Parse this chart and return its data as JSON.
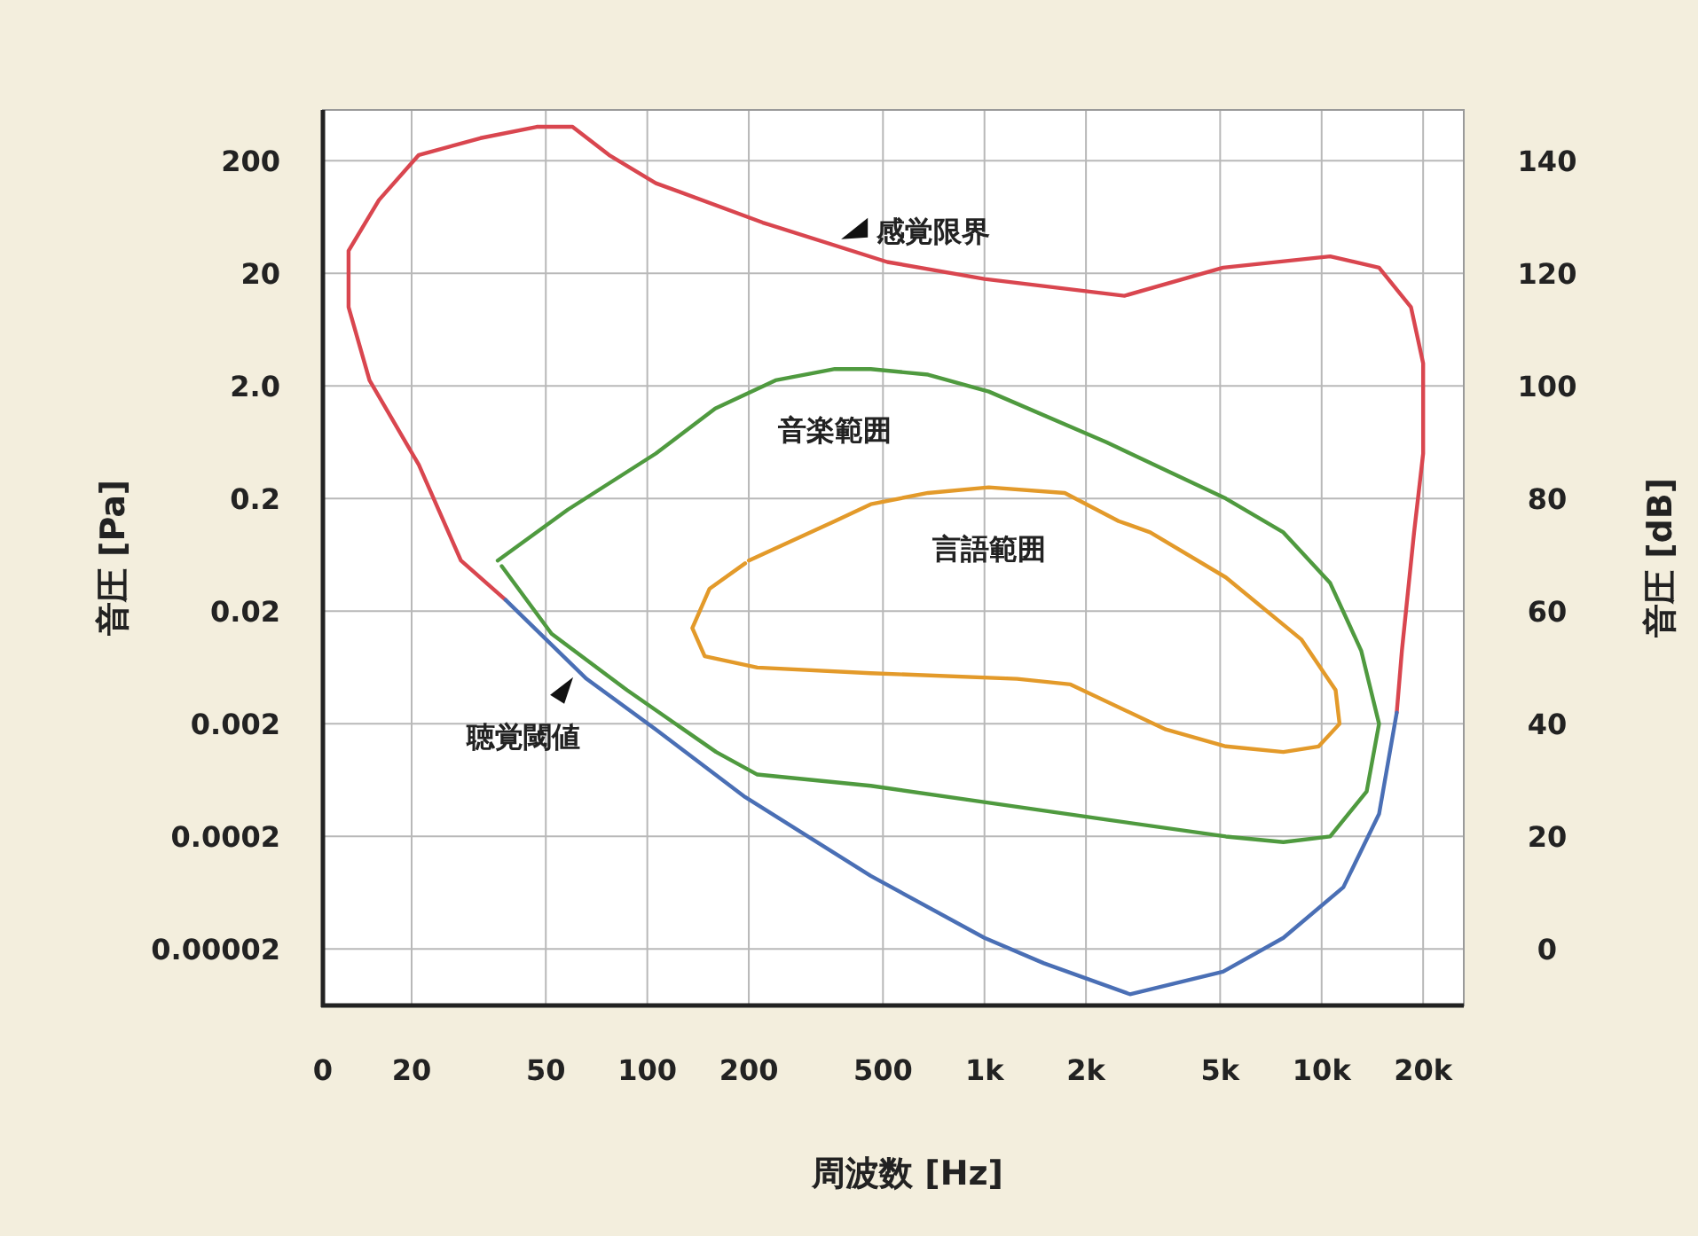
{
  "chart_data": {
    "type": "line",
    "xlabel": "周波数 [Hz]",
    "ylabel": "音圧 [Pa]",
    "y2label": "音圧 [dB]",
    "xlim": [
      0,
      26400
    ],
    "ylim": [
      6.3e-06,
      564
    ],
    "y2lim": [
      -10,
      149
    ],
    "log": "xy",
    "grid": true,
    "legend": false,
    "marker": "none",
    "line_style": "solid",
    "xticks": [
      0,
      20,
      50,
      100,
      200,
      500,
      {
        "value": 1000,
        "label": "1k"
      },
      {
        "value": 2000,
        "label": "2k"
      },
      {
        "value": 5000,
        "label": "5k"
      },
      {
        "value": 10000,
        "label": "10k"
      },
      {
        "value": 20000,
        "label": "20k"
      }
    ],
    "yticks": [
      {
        "value": 2e-05,
        "label": "0.00002"
      },
      0.0002,
      0.002,
      0.02,
      0.2,
      {
        "value": 2,
        "label": "2.0"
      },
      20,
      200
    ],
    "y2ticks": [
      0,
      20,
      40,
      60,
      80,
      100,
      120,
      140
    ],
    "series": [
      {
        "color": "#d9464f",
        "axis": "y2",
        "x": [
          38,
          28,
          21,
          15,
          13,
          13,
          16,
          21,
          32,
          47,
          60,
          77,
          106,
          220,
          515,
          1000,
          2600,
          5100,
          10600,
          14800,
          18400,
          20000,
          20000,
          18800,
          17300,
          16700
        ],
        "values": [
          62,
          69,
          86,
          101,
          114,
          124,
          133,
          141,
          144,
          146,
          146,
          141,
          136,
          129,
          122,
          119,
          116,
          121,
          123,
          121,
          114,
          104,
          88,
          74,
          53,
          42
        ]
      },
      {
        "color": "#4a6fb5",
        "axis": "y2",
        "x": [
          16700,
          14800,
          11600,
          7700,
          5100,
          2700,
          1500,
          1000,
          460,
          195,
          106,
          66,
          38
        ],
        "values": [
          42,
          24,
          11,
          2,
          -4,
          -8,
          -2.5,
          2,
          13,
          27,
          39,
          48,
          62
        ]
      },
      {
        "name": "音楽範囲",
        "color": "#4f9a3f",
        "axis": "y2",
        "x": [
          36,
          58,
          106,
          159,
          240,
          360,
          460,
          680,
          1030,
          2300,
          5200,
          7700,
          10600,
          13100,
          14800,
          13600,
          10600,
          7700,
          5200,
          2300,
          1030,
          460,
          212,
          160,
          87,
          52,
          37
        ],
        "values": [
          69,
          78,
          88,
          96,
          101,
          103,
          103,
          102,
          99,
          90,
          80,
          74,
          65,
          53,
          40,
          28,
          20,
          19,
          20,
          23,
          26,
          29,
          31,
          35,
          46,
          56,
          68
        ]
      },
      {
        "name": "言語範囲",
        "color": "#e39a2a",
        "axis": "y2",
        "x": [
          200,
          360,
          460,
          680,
          1030,
          1730,
          2500,
          3100,
          5200,
          8700,
          11000,
          11300,
          9800,
          7700,
          5200,
          3450,
          1800,
          1250,
          460,
          212,
          148,
          136,
          153,
          195
        ],
        "values": [
          69,
          76,
          79,
          81,
          82,
          81,
          76,
          74,
          66,
          55,
          46,
          40,
          36,
          35,
          36,
          39,
          47,
          48,
          49,
          50,
          52,
          57,
          64,
          68.5
        ]
      }
    ],
    "annotations": [
      {
        "text": "感覚限界",
        "x": 358,
        "y": 36
      },
      {
        "text": "聴覚閾値",
        "x": 62.5,
        "y": 0.0062
      }
    ]
  }
}
